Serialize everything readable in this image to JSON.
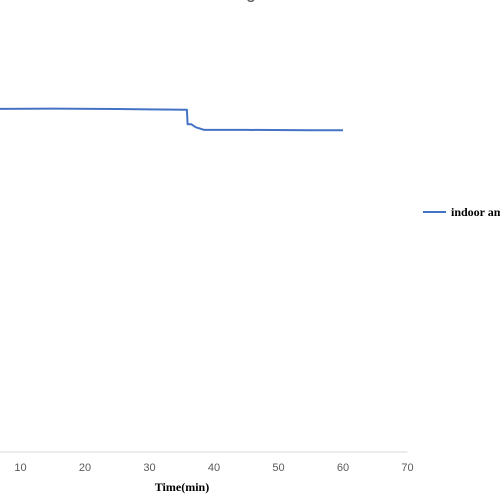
{
  "chart_data": {
    "type": "line",
    "title_fragment": "g",
    "xlabel": "Time(min)",
    "ylabel": "",
    "xlim": [
      0,
      70
    ],
    "x_ticks": [
      "10",
      "20",
      "30",
      "40",
      "50",
      "60",
      "70"
    ],
    "grid": false,
    "legend_position": "right",
    "series": [
      {
        "name": "indoor am",
        "color": "#4472C4",
        "points": [
          [
            -2,
            0.92
          ],
          [
            5,
            0.921
          ],
          [
            15,
            0.922
          ],
          [
            25,
            0.921
          ],
          [
            30,
            0.92
          ],
          [
            35.8,
            0.919
          ],
          [
            35.9,
            0.88
          ],
          [
            36.5,
            0.88
          ],
          [
            37.2,
            0.872
          ],
          [
            38.5,
            0.865
          ],
          [
            45,
            0.865
          ],
          [
            55,
            0.864
          ],
          [
            60,
            0.864
          ]
        ]
      }
    ]
  }
}
